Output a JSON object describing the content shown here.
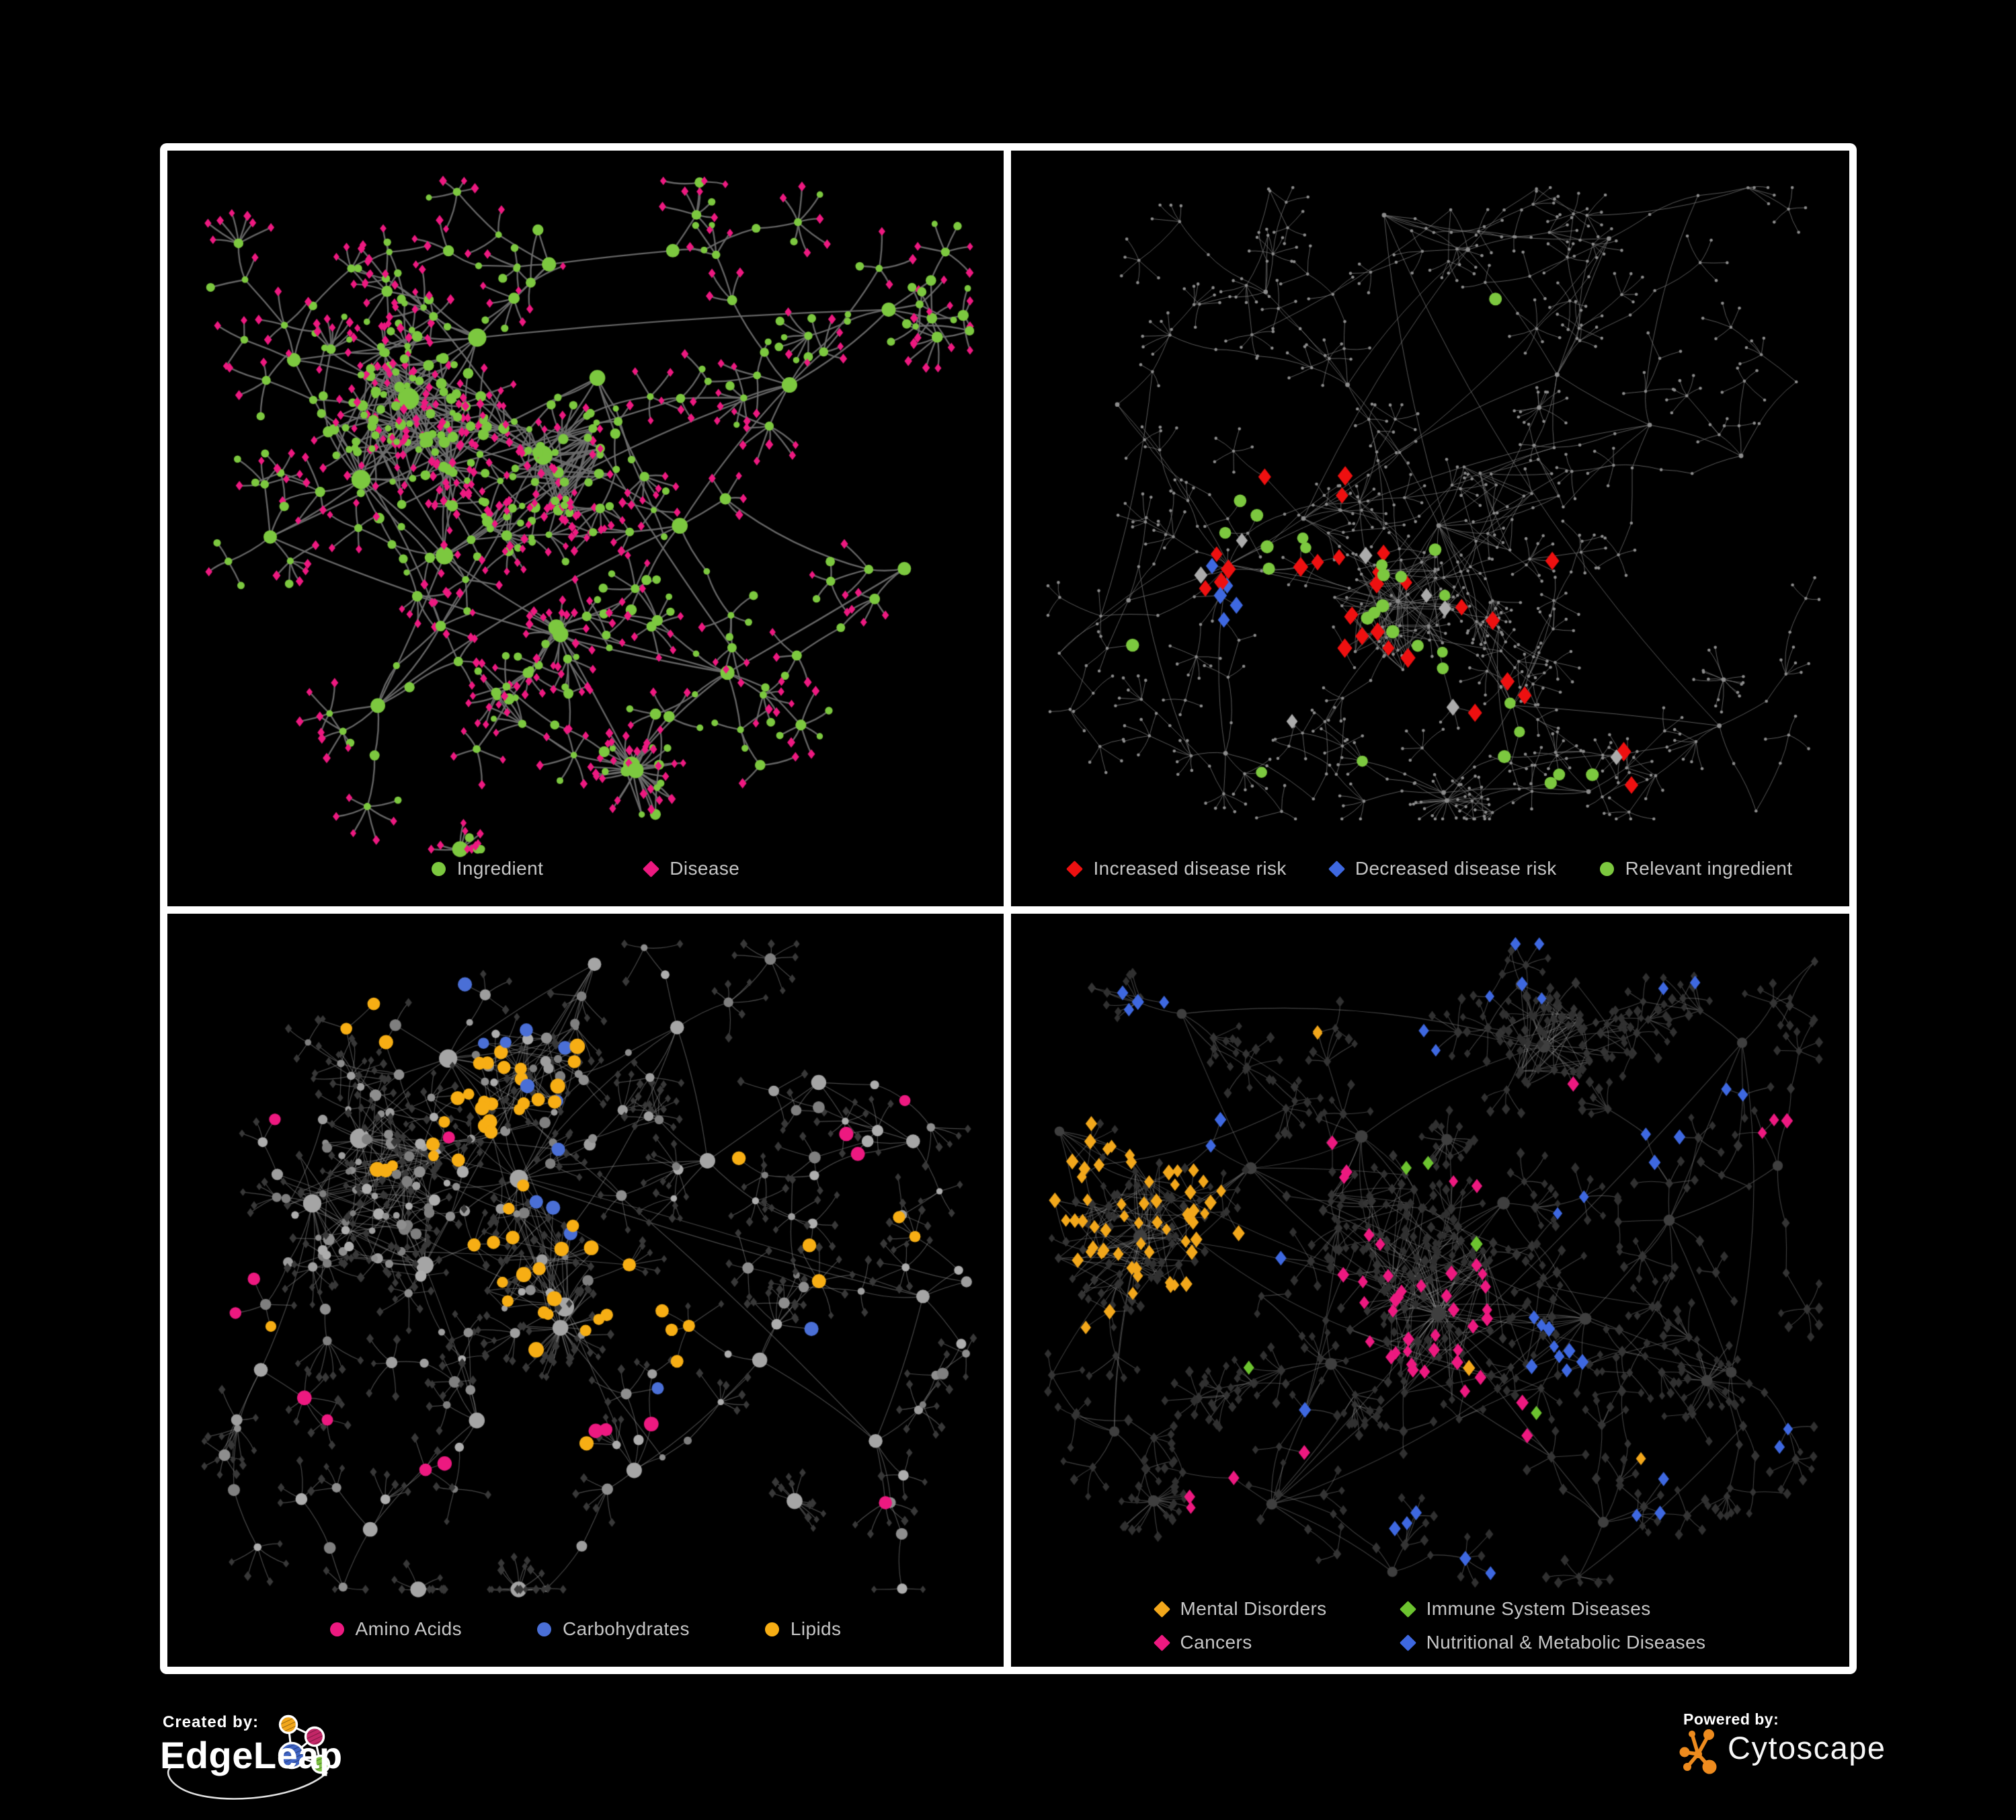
{
  "branding": {
    "created_by_label": "Created by:",
    "created_by_name": "EdgeLeap",
    "powered_by_label": "Powered by:",
    "powered_by_name": "Cytoscape"
  },
  "colors": {
    "background": "#000000",
    "frame": "#FFFFFF",
    "legend_text": "#C6C6C6",
    "cytoscape_orange": "#EE8B1E",
    "edgeleap_logo": {
      "orange": "#F2A71B",
      "magenta": "#C32667",
      "blue": "#3E63C4",
      "green": "#7DC242"
    },
    "network": {
      "edge_gray": "#6E6E6E",
      "node_gray": "#A5A5A5",
      "tiny_node_gray": "#8C8C8C",
      "muted_diamond": "#383838",
      "neutral_diamond": "#ABABAB"
    }
  },
  "panels": [
    {
      "id": "ingredient-disease",
      "position": "top-left",
      "legend": [
        {
          "shape": "circle",
          "color": "#7CC83F",
          "label": "Ingredient"
        },
        {
          "shape": "diamond",
          "color": "#ED1980",
          "label": "Disease"
        }
      ]
    },
    {
      "id": "disease-risk",
      "position": "top-right",
      "legend": [
        {
          "shape": "diamond",
          "color": "#EE1010",
          "label": "Increased disease risk"
        },
        {
          "shape": "diamond",
          "color": "#3E68E0",
          "label": "Decreased disease risk"
        },
        {
          "shape": "circle",
          "color": "#7CC83F",
          "label": "Relevant ingredient"
        }
      ]
    },
    {
      "id": "macronutrients",
      "position": "bottom-left",
      "legend": [
        {
          "shape": "circle",
          "color": "#ED1980",
          "label": "Amino Acids"
        },
        {
          "shape": "circle",
          "color": "#4A6FD6",
          "label": "Carbohydrates"
        },
        {
          "shape": "circle",
          "color": "#F7AE14",
          "label": "Lipids"
        }
      ]
    },
    {
      "id": "disease-classes",
      "position": "bottom-right",
      "legend": [
        {
          "shape": "diamond",
          "color": "#F2A71B",
          "label": "Mental Disorders"
        },
        {
          "shape": "diamond",
          "color": "#6CC32F",
          "label": "Immune System Diseases"
        },
        {
          "shape": "diamond",
          "color": "#ED1980",
          "label": "Cancers"
        },
        {
          "shape": "diamond",
          "color": "#3E68E0",
          "label": "Nutritional & Metabolic Diseases"
        }
      ]
    }
  ]
}
